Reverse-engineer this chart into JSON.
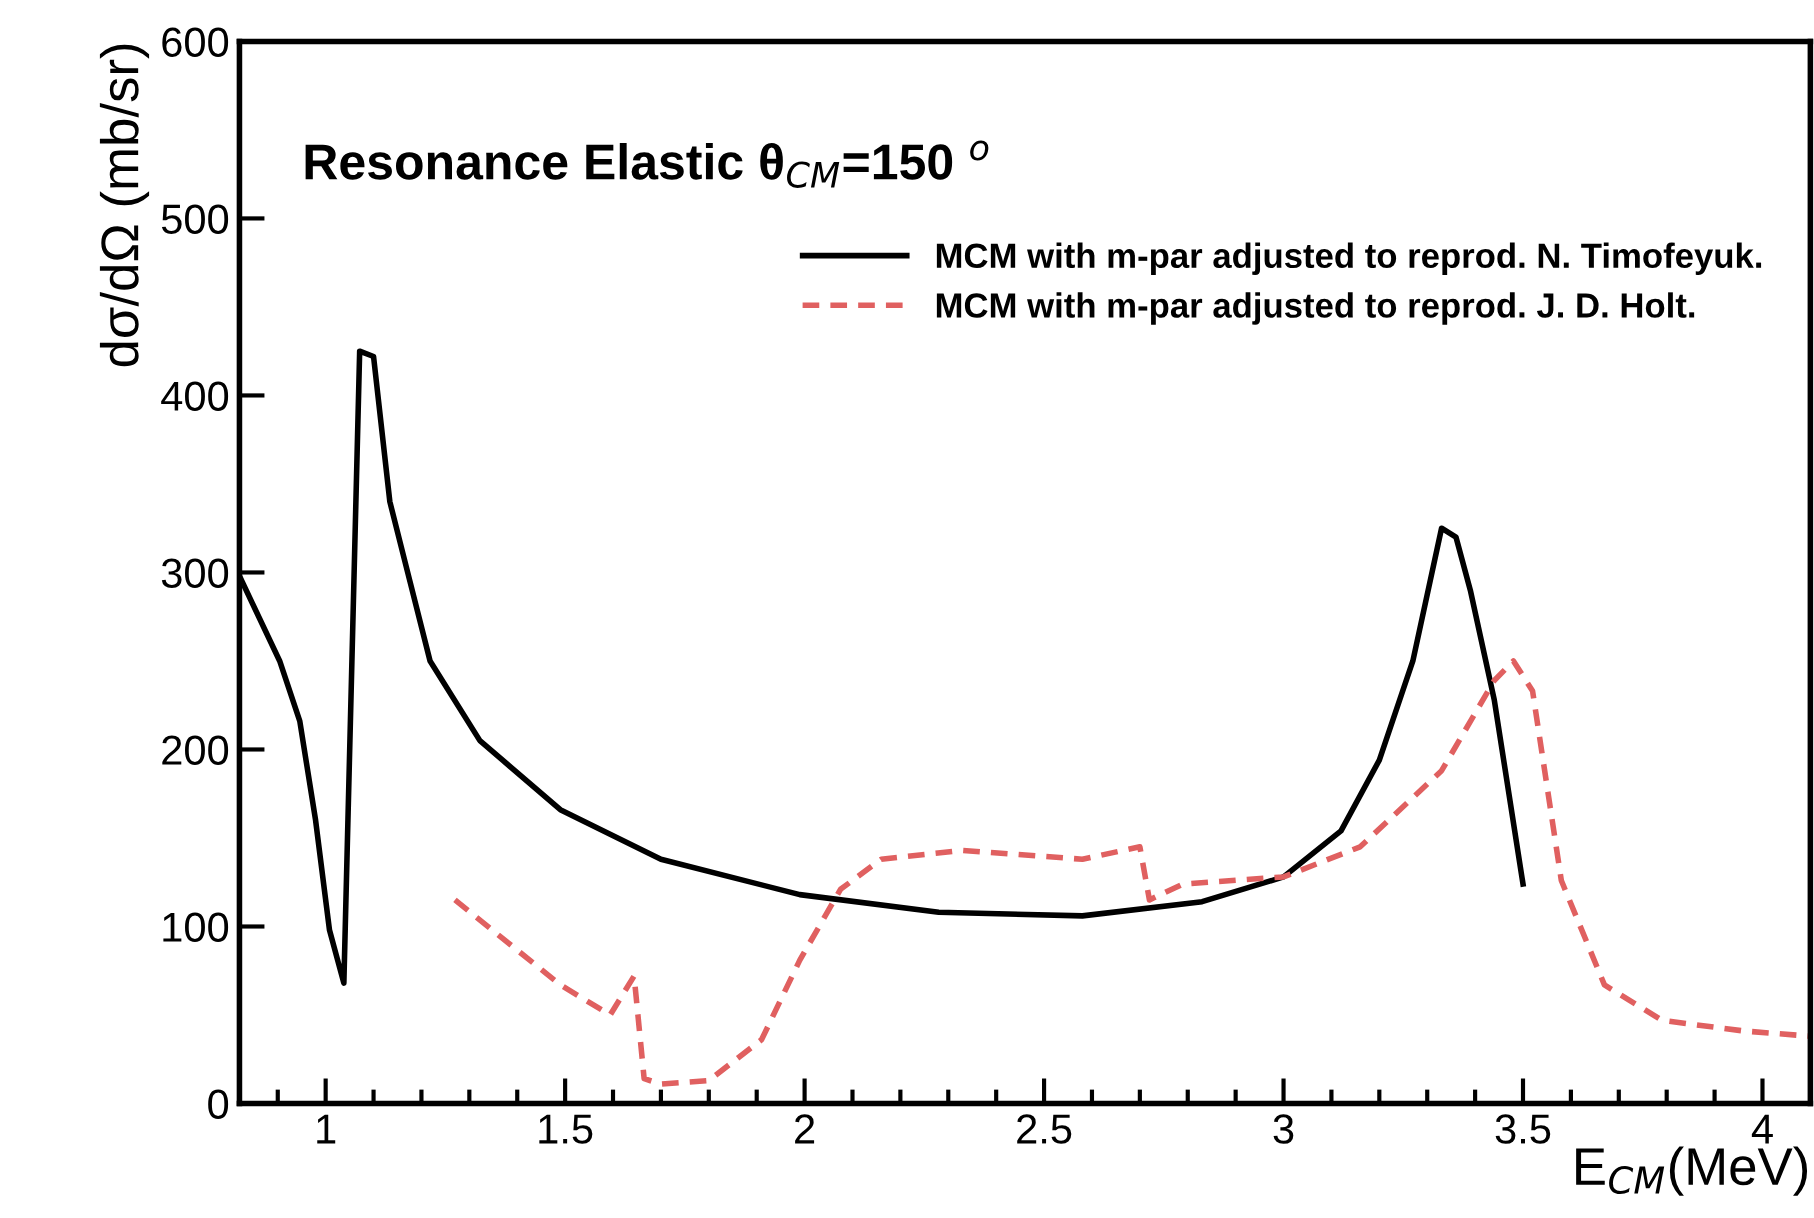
{
  "chart_data": {
    "type": "line",
    "title": "Resonance Elastic θ$_{CM}$=150 $^{o}$",
    "xlabel": "E$_{CM}$(MeV)",
    "ylabel": "dσ/dΩ (mb/sr)",
    "xlim": [
      0.82,
      4.1
    ],
    "ylim": [
      0,
      600
    ],
    "xticks": [
      1,
      1.5,
      2,
      2.5,
      3,
      3.5,
      4
    ],
    "yticks": [
      0,
      100,
      200,
      300,
      400,
      500,
      600
    ],
    "grid": false,
    "legend": "top right",
    "series": [
      {
        "name": "MCM with m-par adjusted to reprod. N. Timofeyuk.",
        "color": "#000000",
        "line_style": "solid",
        "x": [
          0.82,
          0.904,
          0.946,
          0.979,
          1.008,
          1.038,
          1.071,
          1.1,
          1.134,
          1.176,
          1.218,
          1.322,
          1.49,
          1.7,
          1.99,
          2.28,
          2.58,
          2.83,
          3.0,
          3.12,
          3.2,
          3.27,
          3.33,
          3.36,
          3.39,
          3.44,
          3.5
        ],
        "values": [
          298,
          250,
          216,
          160,
          98,
          68,
          425,
          422,
          340,
          295,
          250,
          205,
          166,
          138,
          118,
          108,
          106,
          114,
          128,
          154,
          194,
          250,
          325,
          320,
          290,
          228,
          124
        ]
      },
      {
        "name": "MCM with m-par adjusted to reprod. J. D. Holt.",
        "color": "#e06060",
        "line_style": "dashed",
        "x": [
          1.27,
          1.49,
          1.594,
          1.644,
          1.665,
          1.7,
          1.8,
          1.91,
          1.99,
          2.075,
          2.16,
          2.33,
          2.58,
          2.7,
          2.72,
          2.79,
          3.0,
          3.16,
          3.33,
          3.44,
          3.48,
          3.52,
          3.58,
          3.67,
          3.79,
          3.96,
          4.1
        ],
        "values": [
          115,
          67,
          50,
          72,
          14,
          11,
          13,
          36,
          81,
          121,
          138,
          143,
          138,
          145,
          115,
          124,
          128,
          145,
          188,
          239,
          250,
          233,
          126,
          67,
          47,
          41,
          38
        ]
      }
    ]
  }
}
